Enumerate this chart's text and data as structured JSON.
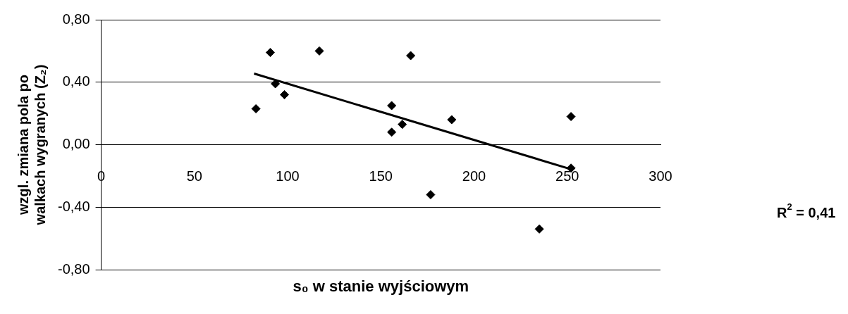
{
  "chart_data": {
    "type": "scatter",
    "xlabel": "s₀ w stanie wyjściowym",
    "ylabel": "wzgl. zmiana pola po walkach wygranych (Z₂)",
    "xlim": [
      0,
      300
    ],
    "xticks": [
      0,
      50,
      100,
      150,
      200,
      250,
      300
    ],
    "ylim": [
      -0.8,
      0.8
    ],
    "yticks": [
      {
        "value": -0.8,
        "label": "-0,80"
      },
      {
        "value": -0.4,
        "label": "-0,40"
      },
      {
        "value": 0,
        "label": "0,00"
      },
      {
        "value": 0.4,
        "label": "0,40"
      },
      {
        "value": 0.8,
        "label": "0,80"
      }
    ],
    "grid": "y",
    "legend": false,
    "marker": "diamond",
    "annotations": [
      "R$^{2}$ = 0,41"
    ],
    "series": [
      {
        "color": "#000000",
        "x": [
          83,
          90.7,
          93.4,
          98.3,
          117,
          155.8,
          155.8,
          161.5,
          166,
          176.7,
          188,
          235,
          252,
          252
        ],
        "values": [
          0.23,
          0.59,
          0.39,
          0.32,
          0.6,
          0.25,
          0.08,
          0.13,
          0.57,
          -0.32,
          0.16,
          -0.54,
          0.18,
          -0.15
        ]
      },
      {
        "type": "line",
        "color": "#000000",
        "x": [
          82,
          252
        ],
        "values": [
          0.455,
          -0.157
        ],
        "marker": "none",
        "line_style": "solid"
      }
    ]
  }
}
